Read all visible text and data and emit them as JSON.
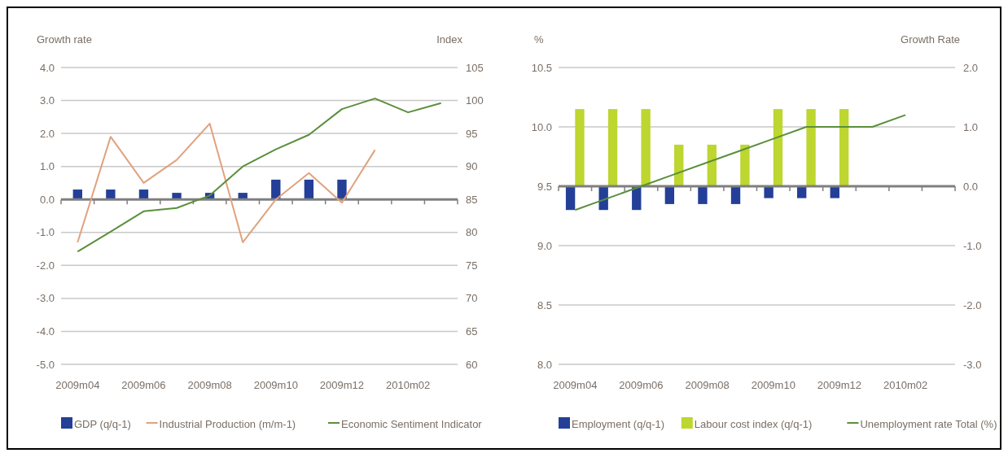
{
  "chart_data": [
    {
      "type": "bar",
      "ylabel": "Growth rate",
      "y2label": "Index",
      "categories": [
        "2009m04",
        null,
        "2009m06",
        null,
        "2009m08",
        null,
        "2009m10",
        null,
        "2009m12",
        null,
        "2010m02",
        null
      ],
      "series": [
        {
          "name": "GDP (q/q-1)",
          "color": "#233f98",
          "values": [
            0.3,
            0.3,
            0.3,
            0.2,
            0.2,
            0.2,
            0.6,
            0.6,
            0.6,
            null,
            null,
            null
          ]
        },
        {
          "name": "Industrial Production (m/m-1)",
          "type": "line",
          "color": "#e0a27f",
          "values": [
            -1.3,
            1.9,
            0.5,
            1.2,
            2.3,
            -1.3,
            0.0,
            0.8,
            -0.1,
            1.5,
            null,
            null
          ]
        },
        {
          "name": "Economic Sentiment Indicator",
          "type": "line",
          "axis": "y2",
          "color": "#5a8f3c",
          "values": [
            77.1,
            80.1,
            83.2,
            83.7,
            85.6,
            90.0,
            92.6,
            94.8,
            98.7,
            100.3,
            98.2,
            99.6
          ]
        }
      ],
      "ylim": [
        -5,
        4
      ],
      "yticks": [
        {
          "value": -5,
          "label": "-5.0"
        },
        {
          "value": -4,
          "label": "-4.0"
        },
        {
          "value": -3,
          "label": "-3.0"
        },
        {
          "value": -2,
          "label": "-2.0"
        },
        {
          "value": -1,
          "label": "-1.0"
        },
        {
          "value": 0,
          "label": "0.0"
        },
        {
          "value": 1,
          "label": "1.0"
        },
        {
          "value": 2,
          "label": "2.0"
        },
        {
          "value": 3,
          "label": "3.0"
        },
        {
          "value": 4,
          "label": "4.0"
        }
      ],
      "y2lim": [
        60,
        105
      ],
      "y2ticks": [
        60,
        65,
        70,
        75,
        80,
        85,
        90,
        95,
        100,
        105
      ],
      "grid": "y",
      "legend": "bottom"
    },
    {
      "type": "bar",
      "ylabel": "%",
      "y2label": "Growth Rate",
      "categories": [
        "2009m04",
        null,
        "2009m06",
        null,
        "2009m08",
        null,
        "2009m10",
        null,
        "2009m12",
        null,
        "2010m02",
        null
      ],
      "series": [
        {
          "name": "Employment (q/q-1)",
          "axis": "y2",
          "color": "#233f98",
          "values": [
            -0.4,
            -0.4,
            -0.4,
            -0.3,
            -0.3,
            -0.3,
            -0.2,
            -0.2,
            -0.2,
            null,
            null,
            null
          ]
        },
        {
          "name": "Labour cost index  (q/q-1)",
          "axis": "y2",
          "color": "#bdd630",
          "values": [
            1.3,
            1.3,
            1.3,
            0.7,
            0.7,
            0.7,
            1.3,
            1.3,
            1.3,
            null,
            null,
            null
          ]
        },
        {
          "name": "Unemployment rate Total (%)",
          "type": "line",
          "color": "#5a8f3c",
          "values": [
            9.3,
            9.4,
            9.5,
            9.6,
            9.7,
            9.8,
            9.9,
            10.0,
            10.0,
            10.0,
            10.1,
            null
          ]
        }
      ],
      "ylim": [
        8,
        10.5
      ],
      "yticks": [
        {
          "value": 8,
          "label": "8.0"
        },
        {
          "value": 8.5,
          "label": "8.5"
        },
        {
          "value": 9,
          "label": "9.0"
        },
        {
          "value": 9.5,
          "label": "9.5"
        },
        {
          "value": 10,
          "label": "10.0"
        },
        {
          "value": 10.5,
          "label": "10.5"
        }
      ],
      "y2lim": [
        -3,
        2
      ],
      "y2ticks": [
        {
          "value": -3,
          "label": "-3.0"
        },
        {
          "value": -2,
          "label": "-2.0"
        },
        {
          "value": -1,
          "label": "-1.0"
        },
        {
          "value": 0,
          "label": "0.0"
        },
        {
          "value": 1,
          "label": "1.0"
        },
        {
          "value": 2,
          "label": "2.0"
        }
      ],
      "grid": "y",
      "legend": "bottom"
    }
  ]
}
